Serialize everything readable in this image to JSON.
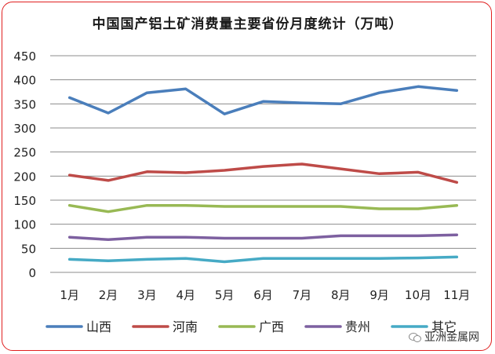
{
  "chart_data": {
    "type": "line",
    "title": "中国国产铝土矿消费量主要省份月度统计（万吨）",
    "categories": [
      "1月",
      "2月",
      "3月",
      "4月",
      "5月",
      "6月",
      "7月",
      "8月",
      "9月",
      "10月",
      "11月"
    ],
    "ylim": [
      0,
      450
    ],
    "yticks": [
      0,
      50,
      100,
      150,
      200,
      250,
      300,
      350,
      400,
      450
    ],
    "grid": true,
    "legend_position": "bottom",
    "series": [
      {
        "name": "山西",
        "color": "#4a7ebb",
        "values": [
          363,
          331,
          373,
          381,
          329,
          355,
          352,
          350,
          373,
          386,
          378
        ]
      },
      {
        "name": "河南",
        "color": "#be4b48",
        "values": [
          202,
          191,
          209,
          207,
          212,
          220,
          225,
          215,
          205,
          208,
          187
        ]
      },
      {
        "name": "广西",
        "color": "#98b954",
        "values": [
          139,
          126,
          139,
          139,
          137,
          137,
          137,
          137,
          132,
          132,
          139
        ]
      },
      {
        "name": "贵州",
        "color": "#7d60a0",
        "values": [
          73,
          68,
          73,
          73,
          71,
          71,
          71,
          76,
          76,
          76,
          78
        ]
      },
      {
        "name": "其它",
        "color": "#46aac5",
        "values": [
          27,
          24,
          27,
          29,
          22,
          29,
          29,
          29,
          29,
          30,
          32
        ]
      }
    ]
  },
  "watermark": {
    "text": "亚洲金属网",
    "icon": "wechat-icon"
  }
}
